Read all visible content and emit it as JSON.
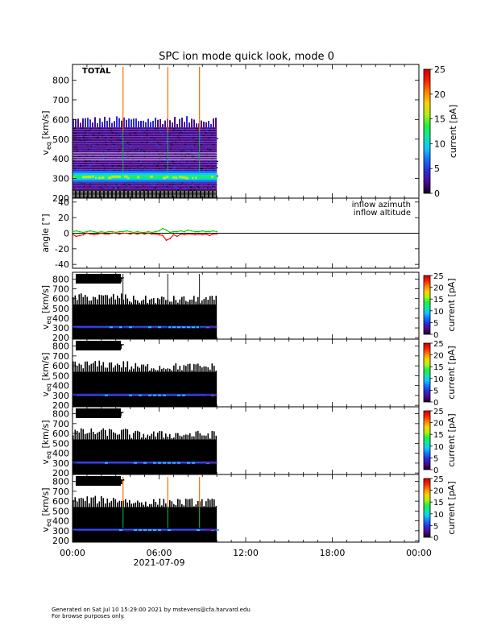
{
  "title": "SPC ion mode quick look, mode 0",
  "footer": {
    "generated": "Generated on Sat Jul 10 15:29:00 2021 by mstevens@cfa.harvard.edu",
    "note": "For browse purposes only."
  },
  "colors": {
    "colorbar": [
      "#1a0026",
      "#4b0a8c",
      "#2a2cd8",
      "#1670ff",
      "#12c8ff",
      "#10e8a0",
      "#22f040",
      "#b4f010",
      "#ffd000",
      "#ff8000",
      "#ff2000",
      "#c80000"
    ],
    "azimuth": "#ff0000",
    "altitude": "#00cc00"
  },
  "chart_data": [
    {
      "type": "heatmap",
      "panel": "total",
      "label": "TOTAL",
      "ylabel": "v",
      "ylabel_sub": "eq",
      "ylabel_unit": "[km/s]",
      "ylim": [
        200,
        880
      ],
      "yticks": [
        200,
        300,
        400,
        500,
        600,
        700,
        800
      ],
      "xlim_hours": [
        0,
        24
      ],
      "data_end_hour": 10.0,
      "upper_edge_kms": 560,
      "beam_center_kms": 310,
      "beam_width_kms": 30,
      "spikes_hours": [
        3.5,
        6.6,
        8.8
      ],
      "cbar_label": "current [pA]",
      "cbar_ticks": [
        0,
        5,
        10,
        15,
        20,
        25
      ],
      "cbar_range": [
        0,
        25
      ]
    },
    {
      "type": "line",
      "panel": "angles",
      "ylabel": "angle [°]",
      "ylim": [
        -45,
        45
      ],
      "yticks": [
        -40,
        -20,
        0,
        20,
        40
      ],
      "xlim_hours": [
        0,
        24
      ],
      "series": [
        {
          "name": "inflow azimuth",
          "color": "#ff0000",
          "x": [
            0,
            0.25,
            0.5,
            0.75,
            1.0,
            1.25,
            1.5,
            1.75,
            2.0,
            2.25,
            2.5,
            2.75,
            3.0,
            3.25,
            3.5,
            3.75,
            4.0,
            4.25,
            4.5,
            4.75,
            5.0,
            5.25,
            5.5,
            5.75,
            6.0,
            6.25,
            6.5,
            6.75,
            7.0,
            7.25,
            7.5,
            7.75,
            8.0,
            8.25,
            8.5,
            8.75,
            9.0,
            9.25,
            9.5,
            9.75,
            10.0
          ],
          "y": [
            -1,
            -4,
            -3,
            -2,
            0,
            -1,
            -2,
            -1,
            0,
            -1,
            -1,
            0,
            0,
            -1,
            0,
            0,
            -1,
            0,
            -1,
            0,
            -1,
            0,
            -1,
            -1,
            -2,
            -3,
            -9,
            -7,
            -2,
            -4,
            -1,
            -2,
            -1,
            -1,
            -2,
            -1,
            -2,
            -1,
            -3,
            -1,
            -1
          ]
        },
        {
          "name": "inflow altitude",
          "color": "#00cc00",
          "x": [
            0,
            0.25,
            0.5,
            0.75,
            1.0,
            1.25,
            1.5,
            1.75,
            2.0,
            2.25,
            2.5,
            2.75,
            3.0,
            3.25,
            3.5,
            3.75,
            4.0,
            4.25,
            4.5,
            4.75,
            5.0,
            5.25,
            5.5,
            5.75,
            6.0,
            6.25,
            6.5,
            6.75,
            7.0,
            7.25,
            7.5,
            7.75,
            8.0,
            8.25,
            8.5,
            8.75,
            9.0,
            9.25,
            9.5,
            9.75,
            10.0
          ],
          "y": [
            2,
            3,
            2,
            1,
            2,
            3,
            2,
            1,
            2,
            1,
            2,
            2,
            1,
            2,
            2,
            3,
            2,
            1,
            2,
            1,
            1,
            2,
            1,
            2,
            3,
            6,
            4,
            1,
            2,
            2,
            3,
            2,
            4,
            3,
            2,
            2,
            3,
            2,
            2,
            3,
            2
          ]
        }
      ]
    },
    {
      "type": "heatmap",
      "panel": "A",
      "label": "A sensor",
      "ylabel": "v",
      "ylabel_sub": "eq",
      "ylabel_unit": "[km/s]",
      "ylim": [
        185,
        870
      ],
      "yticks": [
        200,
        300,
        400,
        500,
        600,
        700,
        800
      ],
      "xlim_hours": [
        0,
        24
      ],
      "data_end_hour": 10.0,
      "beam_center_kms": 310,
      "spikes_hours": [
        3.5,
        6.6,
        8.8
      ],
      "spike_color": "black",
      "cbar_label": "current [pA]",
      "cbar_ticks": [
        0,
        5,
        10,
        15,
        20,
        25
      ],
      "cbar_range": [
        0,
        25
      ]
    },
    {
      "type": "heatmap",
      "panel": "B",
      "label": "B sensor",
      "ylabel": "v",
      "ylabel_sub": "eq",
      "ylabel_unit": "[km/s]",
      "ylim": [
        185,
        870
      ],
      "yticks": [
        200,
        300,
        400,
        500,
        600,
        700,
        800
      ],
      "xlim_hours": [
        0,
        24
      ],
      "data_end_hour": 10.0,
      "beam_center_kms": 305,
      "spikes_hours": [],
      "cbar_label": "current [pA]",
      "cbar_ticks": [
        0,
        5,
        10,
        15,
        20,
        25
      ],
      "cbar_range": [
        0,
        25
      ]
    },
    {
      "type": "heatmap",
      "panel": "C",
      "label": "C sensor",
      "ylabel": "v",
      "ylabel_sub": "eq",
      "ylabel_unit": "[km/s]",
      "ylim": [
        185,
        870
      ],
      "yticks": [
        200,
        300,
        400,
        500,
        600,
        700,
        800
      ],
      "xlim_hours": [
        0,
        24
      ],
      "data_end_hour": 10.0,
      "beam_center_kms": 305,
      "spikes_hours": [],
      "cbar_label": "current [pA]",
      "cbar_ticks": [
        0,
        5,
        10,
        15,
        20,
        25
      ],
      "cbar_range": [
        0,
        25
      ]
    },
    {
      "type": "heatmap",
      "panel": "D",
      "label": "D sensor",
      "ylabel": "v",
      "ylabel_sub": "eq",
      "ylabel_unit": "[km/s]",
      "ylim": [
        185,
        870
      ],
      "yticks": [
        200,
        300,
        400,
        500,
        600,
        700,
        800
      ],
      "xlim_hours": [
        0,
        24
      ],
      "data_end_hour": 10.0,
      "beam_center_kms": 310,
      "spikes_hours": [
        3.5,
        6.6,
        8.8
      ],
      "spike_color": "color",
      "cbar_label": "current [pA]",
      "cbar_ticks": [
        0,
        5,
        10,
        15,
        20,
        25
      ],
      "cbar_range": [
        0,
        25
      ]
    }
  ],
  "x_axis": {
    "tick_labels": [
      "00:00",
      "06:00",
      "12:00",
      "18:00",
      "00:00"
    ],
    "tick_hours": [
      0,
      6,
      12,
      18,
      24
    ],
    "date_label": "2021-07-09"
  }
}
